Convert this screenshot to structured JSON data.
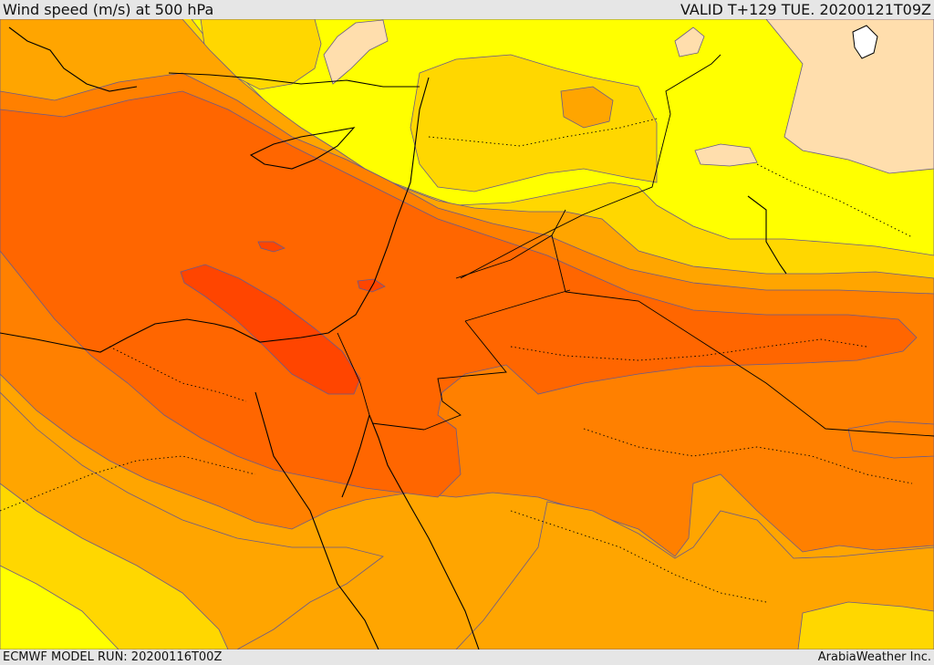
{
  "header": {
    "title": "Wind speed (m/s) at 500 hPa",
    "valid_time": "VALID T+129 TUE. 20200121T09Z"
  },
  "footer": {
    "model_run": "ECMWF MODEL RUN: 20200116T00Z",
    "credit": "ArabiaWeather Inc."
  },
  "map": {
    "variable": "Wind speed",
    "units": "m/s",
    "level": "500 hPa",
    "fill_colors": {
      "very_low": "#ffdead",
      "low": "#ffff00",
      "moderate": "#ffd700",
      "medium": "#ffa500",
      "high": "#ff8000",
      "very_high": "#ff6600",
      "extreme": "#ff4500"
    },
    "coastline_color": "#000000",
    "contour_color": "#6a5a8a"
  }
}
